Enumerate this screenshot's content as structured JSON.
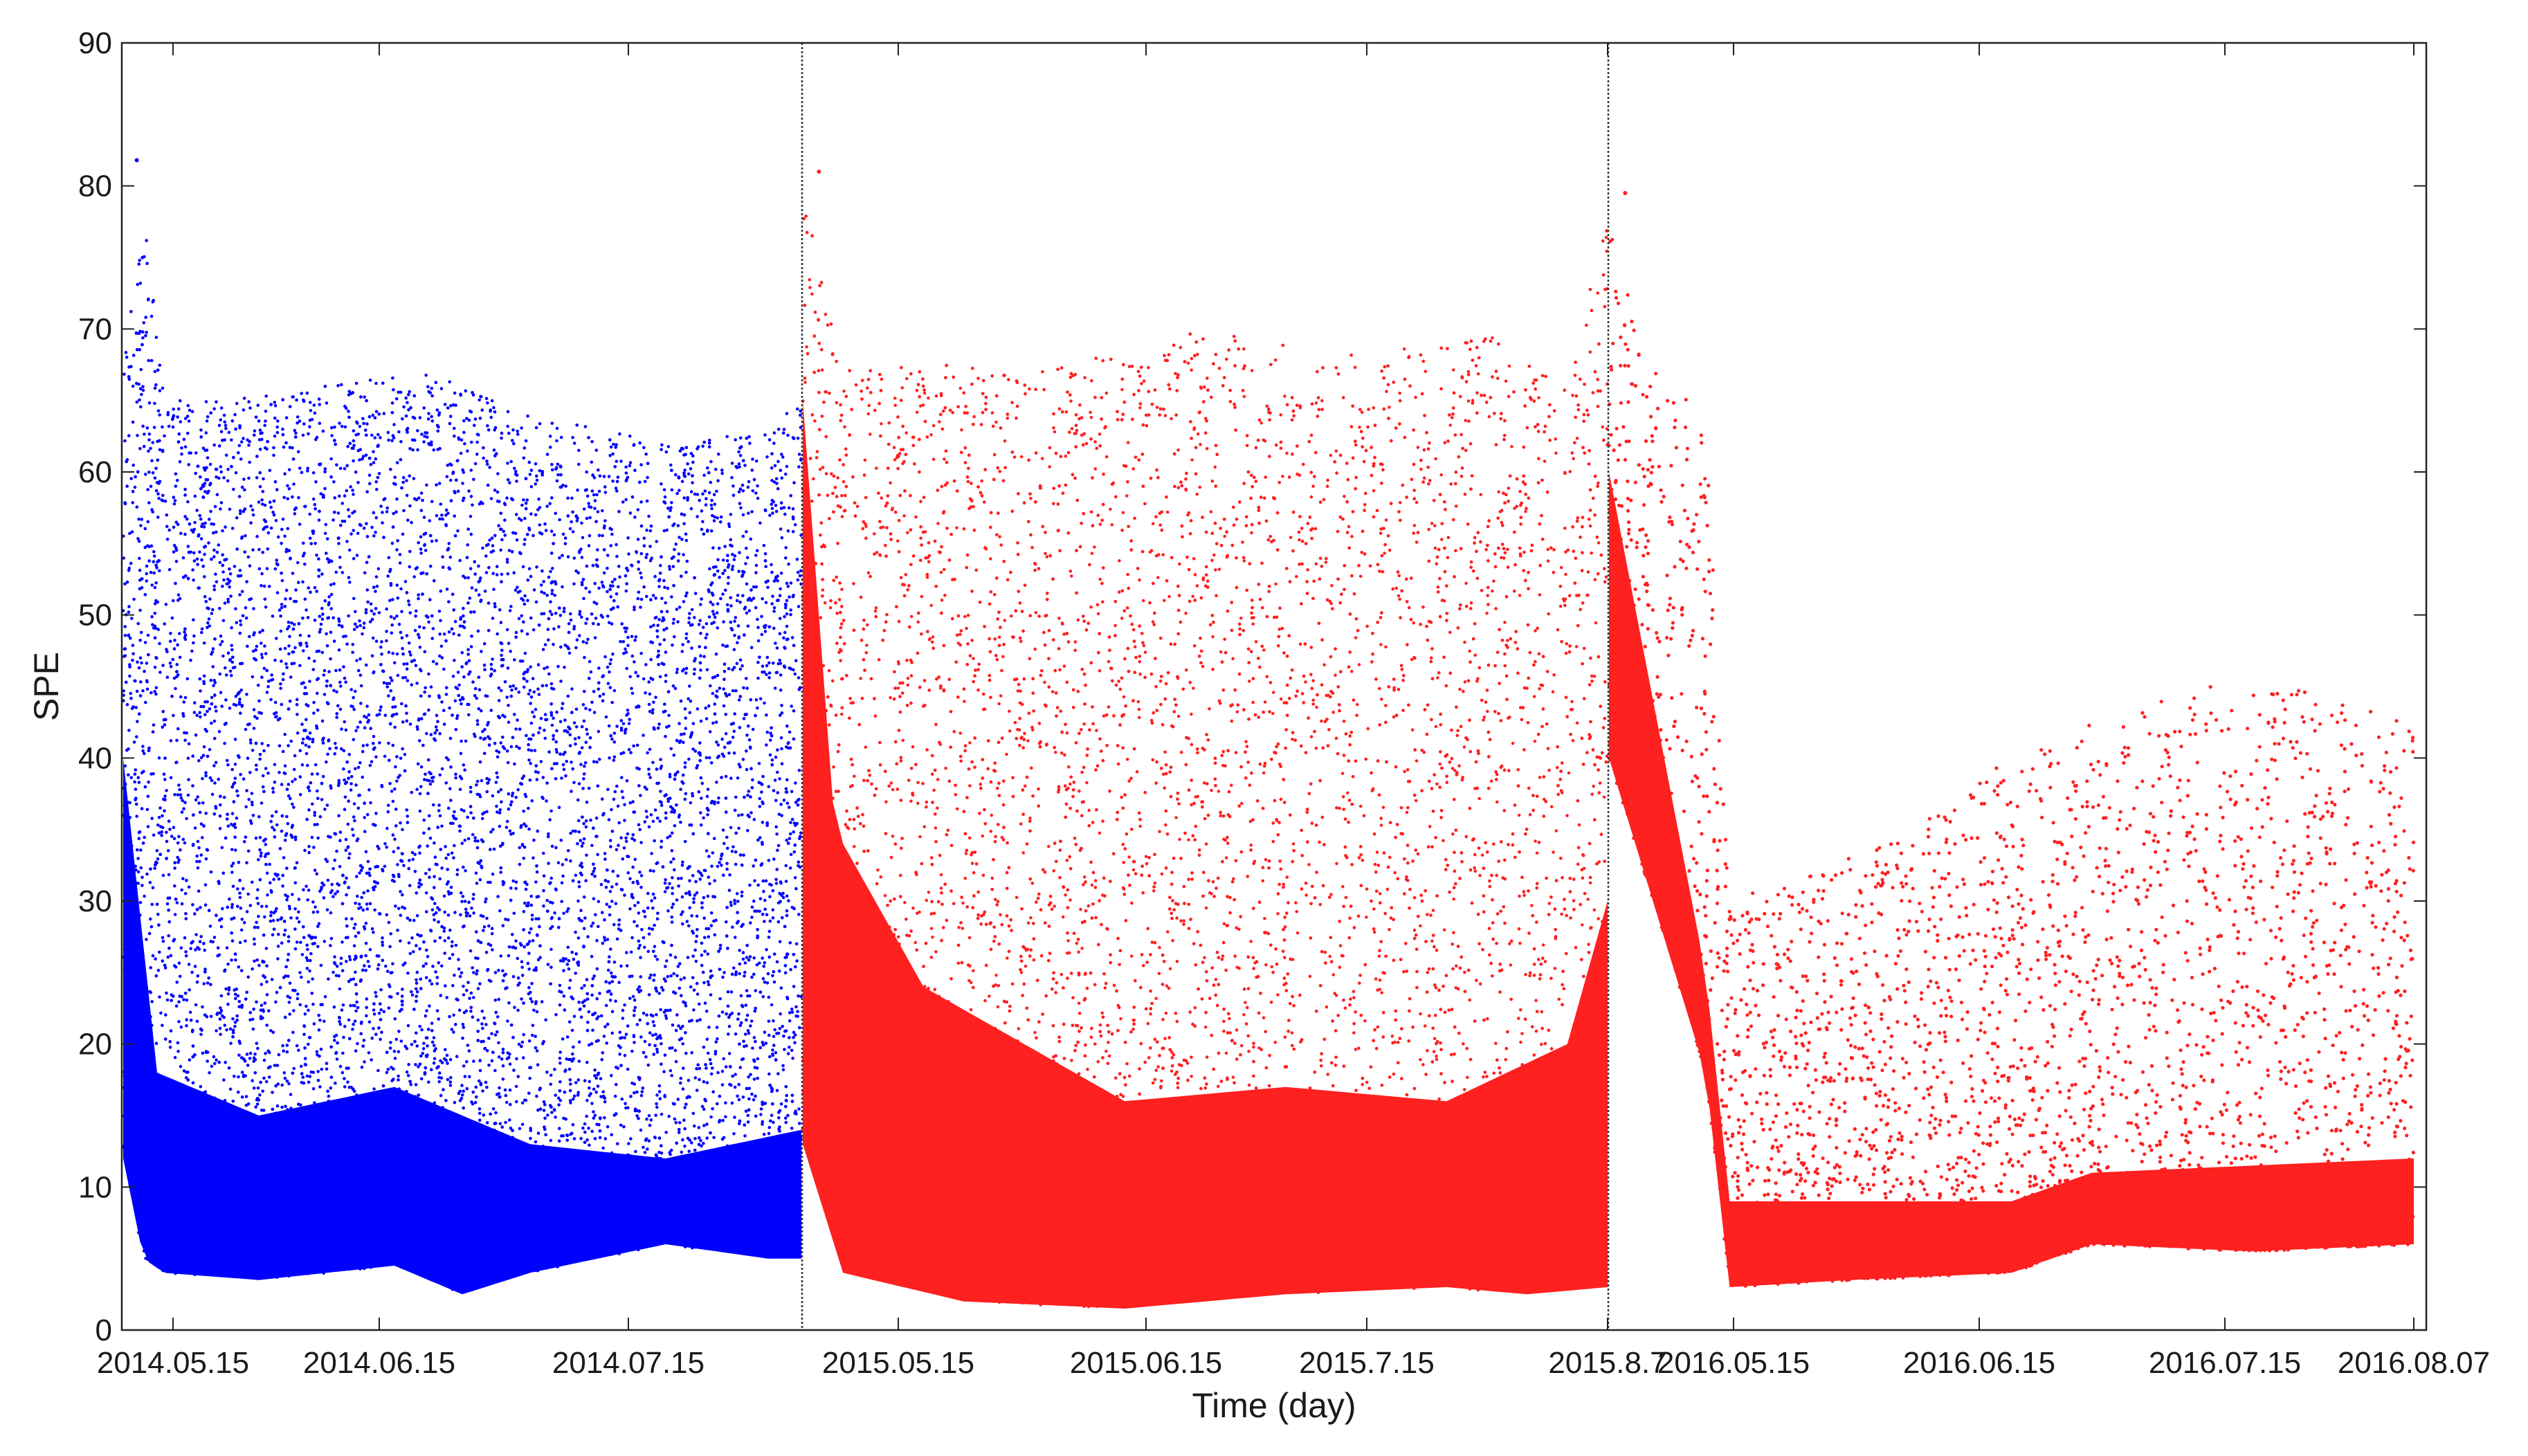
{
  "chart_data": {
    "type": "scatter",
    "xlabel": "Time (day)",
    "ylabel": "SPE",
    "ylim": [
      0,
      90
    ],
    "y_ticks": [
      0,
      10,
      20,
      30,
      40,
      50,
      60,
      70,
      80,
      90
    ],
    "grid": false,
    "legend": "none",
    "x_tick_labels": [
      "2014.05.15",
      "2014.06.15",
      "2014.07.15",
      "2015.05.15",
      "2015.06.15",
      "2015.7.15",
      "2015.8.7",
      "2016.05.15",
      "2016.06.15",
      "2016.07.15",
      "2016.08.07"
    ],
    "segments": [
      {
        "period": "2014",
        "color": "#0000ff",
        "start": "2014-05-15",
        "end": "2014-08-07",
        "peak_spe": 81.8,
        "upper_envelope": [
          [
            0,
            68
          ],
          [
            0.03,
            78
          ],
          [
            0.06,
            66
          ],
          [
            0.15,
            65
          ],
          [
            0.3,
            66
          ],
          [
            0.45,
            67
          ],
          [
            0.6,
            64
          ],
          [
            0.8,
            62
          ],
          [
            0.95,
            63
          ],
          [
            1,
            65
          ]
        ],
        "lower_envelope": [
          [
            0,
            12
          ],
          [
            0.03,
            5
          ],
          [
            0.06,
            4
          ],
          [
            0.2,
            3.5
          ],
          [
            0.4,
            4.5
          ],
          [
            0.5,
            2.5
          ],
          [
            0.6,
            4
          ],
          [
            0.8,
            6
          ],
          [
            0.95,
            5
          ],
          [
            1,
            5
          ]
        ],
        "dense_band_top": [
          [
            0,
            40
          ],
          [
            0.05,
            18
          ],
          [
            0.2,
            15
          ],
          [
            0.4,
            17
          ],
          [
            0.6,
            13
          ],
          [
            0.8,
            12
          ],
          [
            1,
            14
          ]
        ]
      },
      {
        "period": "2015",
        "color": "#ff2020",
        "start": "2015-04-30",
        "end": "2015-08-07",
        "peak_spe": 81.0,
        "upper_envelope": [
          [
            0,
            80
          ],
          [
            0.05,
            68
          ],
          [
            0.3,
            67
          ],
          [
            0.5,
            70
          ],
          [
            0.7,
            68
          ],
          [
            0.85,
            70
          ],
          [
            0.95,
            66
          ],
          [
            1,
            78
          ]
        ],
        "lower_envelope": [
          [
            0,
            13
          ],
          [
            0.05,
            4
          ],
          [
            0.2,
            2
          ],
          [
            0.4,
            1.5
          ],
          [
            0.6,
            2.5
          ],
          [
            0.8,
            3
          ],
          [
            0.9,
            2.5
          ],
          [
            1,
            3
          ]
        ],
        "dense_band_top": [
          [
            0,
            65
          ],
          [
            0.04,
            35
          ],
          [
            0.15,
            24
          ],
          [
            0.4,
            16
          ],
          [
            0.6,
            17
          ],
          [
            0.8,
            16
          ],
          [
            0.95,
            20
          ],
          [
            1,
            30
          ]
        ]
      },
      {
        "period": "2016",
        "color": "#ff2020",
        "start": "2016-04-30",
        "end": "2016-08-07",
        "peak_spe": 79.5,
        "upper_envelope": [
          [
            0,
            78
          ],
          [
            0.05,
            68
          ],
          [
            0.12,
            65
          ],
          [
            0.15,
            30
          ],
          [
            0.3,
            33
          ],
          [
            0.5,
            40
          ],
          [
            0.7,
            45
          ],
          [
            0.9,
            45
          ],
          [
            1,
            42
          ]
        ],
        "lower_envelope": [
          [
            0,
            40
          ],
          [
            0.12,
            18
          ],
          [
            0.15,
            3
          ],
          [
            0.3,
            3.5
          ],
          [
            0.5,
            4
          ],
          [
            0.6,
            6
          ],
          [
            0.8,
            5.5
          ],
          [
            1,
            6
          ]
        ],
        "dense_band_top": [
          [
            0,
            60
          ],
          [
            0.12,
            25
          ],
          [
            0.15,
            9
          ],
          [
            0.5,
            9
          ],
          [
            0.6,
            11
          ],
          [
            1,
            12
          ]
        ]
      }
    ]
  }
}
